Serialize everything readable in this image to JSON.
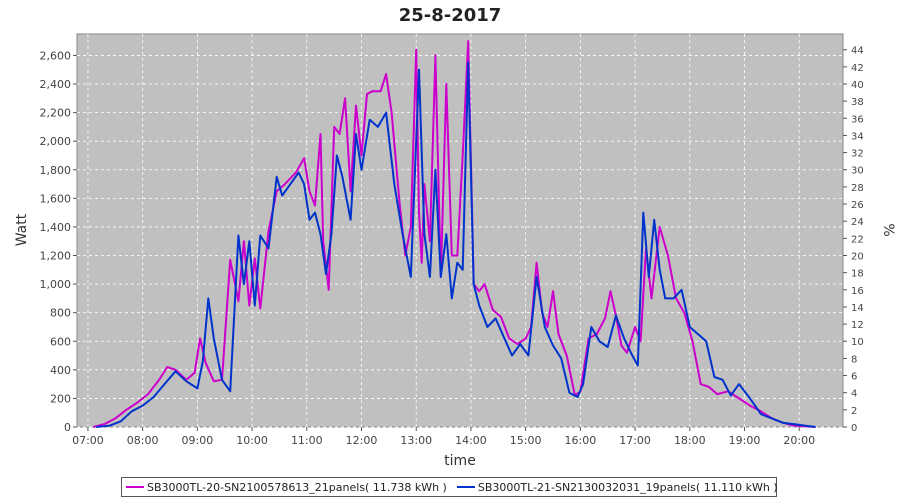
{
  "chart_data": {
    "type": "line",
    "title": "25-8-2017",
    "xlabel": "time",
    "ylabel": "Watt",
    "y2label": "%",
    "xlim": [
      6.8,
      20.8
    ],
    "ylim": [
      0,
      2750
    ],
    "y2lim": [
      0,
      45.83
    ],
    "x_ticks": [
      "07:00",
      "08:00",
      "09:00",
      "10:00",
      "11:00",
      "12:00",
      "13:00",
      "14:00",
      "15:00",
      "16:00",
      "17:00",
      "18:00",
      "19:00",
      "20:00"
    ],
    "x_tick_values": [
      7,
      8,
      9,
      10,
      11,
      12,
      13,
      14,
      15,
      16,
      17,
      18,
      19,
      20
    ],
    "y_ticks": [
      "0",
      "200",
      "400",
      "600",
      "800",
      "1,000",
      "1,200",
      "1,400",
      "1,600",
      "1,800",
      "2,000",
      "2,200",
      "2,400",
      "2,600"
    ],
    "y_tick_values": [
      0,
      200,
      400,
      600,
      800,
      1000,
      1200,
      1400,
      1600,
      1800,
      2000,
      2200,
      2400,
      2600
    ],
    "y2_ticks": [
      "0",
      "2",
      "4",
      "6",
      "8",
      "10",
      "12",
      "14",
      "16",
      "18",
      "20",
      "22",
      "24",
      "26",
      "28",
      "30",
      "32",
      "34",
      "36",
      "38",
      "40",
      "42",
      "44"
    ],
    "y2_tick_values": [
      0,
      2,
      4,
      6,
      8,
      10,
      12,
      14,
      16,
      18,
      20,
      22,
      24,
      26,
      28,
      30,
      32,
      34,
      36,
      38,
      40,
      42,
      44
    ],
    "grid": true,
    "legend_position": "bottom",
    "series": [
      {
        "name": "SB3000TL-20-SN2100578613_21panels( 11.738 kWh )",
        "color": "#cc00cc",
        "x": [
          7.1,
          7.3,
          7.5,
          7.7,
          7.9,
          8.1,
          8.3,
          8.45,
          8.6,
          8.8,
          8.95,
          9.05,
          9.15,
          9.3,
          9.45,
          9.6,
          9.75,
          9.85,
          9.95,
          10.05,
          10.15,
          10.3,
          10.45,
          10.6,
          10.8,
          10.95,
          11.05,
          11.15,
          11.25,
          11.3,
          11.4,
          11.5,
          11.6,
          11.7,
          11.8,
          11.9,
          12.0,
          12.1,
          12.2,
          12.35,
          12.45,
          12.55,
          12.7,
          12.8,
          12.9,
          13.0,
          13.05,
          13.1,
          13.15,
          13.25,
          13.35,
          13.45,
          13.55,
          13.65,
          13.75,
          13.85,
          13.95,
          14.05,
          14.15,
          14.25,
          14.4,
          14.55,
          14.7,
          14.85,
          15.0,
          15.1,
          15.2,
          15.3,
          15.4,
          15.5,
          15.6,
          15.75,
          15.9,
          16.0,
          16.15,
          16.3,
          16.45,
          16.55,
          16.65,
          16.75,
          16.85,
          17.0,
          17.1,
          17.2,
          17.3,
          17.45,
          17.6,
          17.75,
          17.9,
          18.05,
          18.2,
          18.35,
          18.5,
          18.7,
          18.9,
          19.1,
          19.3,
          19.5,
          19.7,
          19.9,
          20.1,
          20.3
        ],
        "y": [
          0,
          20,
          60,
          120,
          170,
          230,
          330,
          420,
          400,
          330,
          380,
          620,
          450,
          320,
          330,
          1170,
          880,
          1300,
          850,
          1180,
          830,
          1370,
          1650,
          1700,
          1780,
          1880,
          1650,
          1550,
          2050,
          1300,
          960,
          2100,
          2050,
          2300,
          1650,
          2250,
          1900,
          2330,
          2350,
          2350,
          2470,
          2200,
          1550,
          1200,
          1400,
          2640,
          1500,
          1150,
          1700,
          1300,
          2600,
          1050,
          2400,
          1200,
          1200,
          1900,
          2700,
          1000,
          950,
          1000,
          820,
          770,
          620,
          580,
          620,
          700,
          1150,
          800,
          700,
          950,
          650,
          500,
          220,
          250,
          620,
          650,
          760,
          950,
          780,
          570,
          520,
          700,
          600,
          1250,
          900,
          1400,
          1200,
          900,
          800,
          600,
          300,
          280,
          230,
          250,
          200,
          150,
          110,
          60,
          30,
          10,
          5,
          0
        ]
      },
      {
        "name": "SB3000TL-21-SN2130032031_19panels( 11.110 kWh )",
        "color": "#0033cc",
        "x": [
          7.15,
          7.4,
          7.6,
          7.8,
          8.0,
          8.2,
          8.4,
          8.6,
          8.8,
          9.0,
          9.1,
          9.2,
          9.3,
          9.45,
          9.6,
          9.75,
          9.85,
          9.95,
          10.05,
          10.15,
          10.3,
          10.45,
          10.55,
          10.7,
          10.85,
          10.95,
          11.05,
          11.15,
          11.25,
          11.35,
          11.45,
          11.55,
          11.65,
          11.8,
          11.9,
          12.0,
          12.15,
          12.3,
          12.45,
          12.6,
          12.75,
          12.9,
          13.05,
          13.15,
          13.25,
          13.35,
          13.45,
          13.55,
          13.65,
          13.75,
          13.85,
          13.95,
          14.05,
          14.15,
          14.3,
          14.45,
          14.6,
          14.75,
          14.9,
          15.05,
          15.2,
          15.35,
          15.5,
          15.65,
          15.8,
          15.95,
          16.05,
          16.2,
          16.35,
          16.5,
          16.65,
          16.8,
          16.95,
          17.05,
          17.15,
          17.25,
          17.35,
          17.45,
          17.55,
          17.7,
          17.85,
          18.0,
          18.15,
          18.3,
          18.45,
          18.6,
          18.75,
          18.9,
          19.1,
          19.3,
          19.5,
          19.7,
          19.9,
          20.1,
          20.3
        ],
        "y": [
          0,
          10,
          40,
          110,
          150,
          210,
          300,
          390,
          320,
          270,
          460,
          900,
          620,
          330,
          250,
          1340,
          1000,
          1300,
          850,
          1340,
          1250,
          1750,
          1620,
          1700,
          1780,
          1700,
          1450,
          1500,
          1350,
          1070,
          1350,
          1900,
          1750,
          1450,
          2050,
          1800,
          2150,
          2100,
          2200,
          1700,
          1350,
          1050,
          2500,
          1350,
          1050,
          1800,
          1050,
          1350,
          900,
          1150,
          1100,
          2550,
          1000,
          850,
          700,
          760,
          630,
          500,
          580,
          500,
          1050,
          700,
          570,
          480,
          240,
          210,
          300,
          700,
          600,
          560,
          780,
          620,
          500,
          430,
          1500,
          1050,
          1450,
          1100,
          900,
          900,
          960,
          700,
          650,
          600,
          350,
          330,
          220,
          300,
          200,
          90,
          60,
          30,
          20,
          10,
          0
        ]
      }
    ]
  }
}
